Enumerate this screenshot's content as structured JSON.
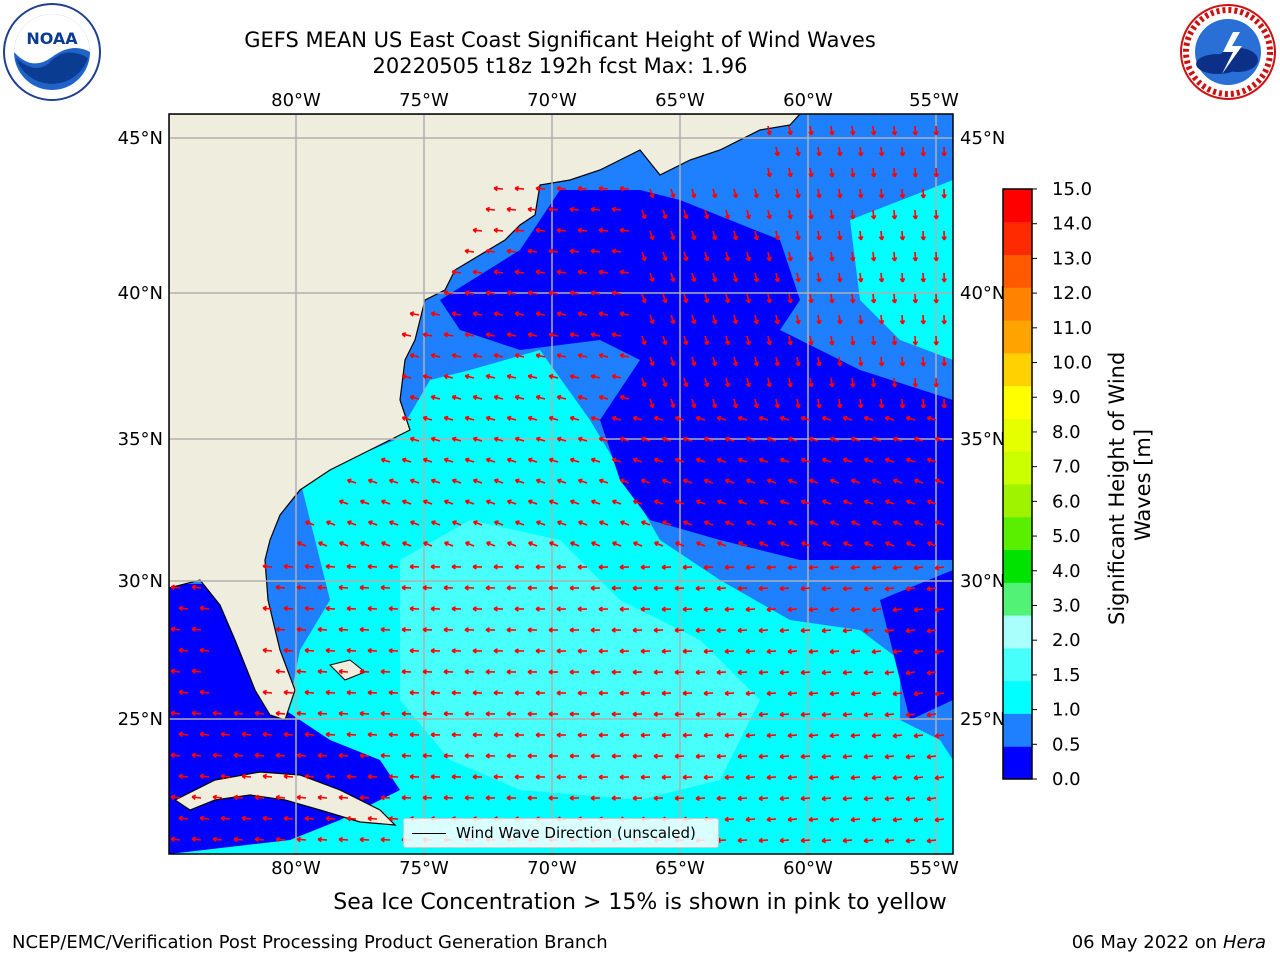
{
  "header": {
    "title_line1": "GEFS MEAN US East Coast Significant Height of Wind Waves",
    "title_line2": "20220505 t18z 192h fcst   Max: 1.96"
  },
  "logos": {
    "left": "NOAA",
    "left_ring_text": "NATIONAL OCEANIC AND ATMOSPHERIC ADMINISTRATION · U.S. DEPARTMENT OF COMMERCE",
    "right_ring_text": "NATIONAL WEATHER SERVICE"
  },
  "map": {
    "lon_labels": [
      "80°W",
      "75°W",
      "70°W",
      "65°W",
      "60°W",
      "55°W"
    ],
    "lat_labels": [
      "45°N",
      "40°N",
      "35°N",
      "30°N",
      "25°N"
    ],
    "legend_label": "Wind Wave Direction (unscaled)",
    "arrow_color": "#ff0000",
    "land_color": "#efedde"
  },
  "colorbar": {
    "label": "Significant Height of Wind Waves [m]",
    "ticks": [
      "0.0",
      "0.5",
      "1.0",
      "1.5",
      "2.0",
      "3.0",
      "4.0",
      "5.0",
      "6.0",
      "7.0",
      "8.0",
      "9.0",
      "10.0",
      "11.0",
      "12.0",
      "13.0",
      "14.0",
      "15.0"
    ],
    "colors": [
      "#0000ff",
      "#1e7fff",
      "#00ffff",
      "#47fffb",
      "#a9fffc",
      "#52f277",
      "#00e300",
      "#5aee00",
      "#9ff200",
      "#cbff00",
      "#e6ff00",
      "#ffff00",
      "#ffd100",
      "#ffa300",
      "#ff8200",
      "#ff5a00",
      "#ff2a00",
      "#ff0000"
    ]
  },
  "footer": {
    "sea_ice_note": "Sea Ice Concentration > 15% is shown in pink to yellow",
    "credit": "NCEP/EMC/Verification Post Processing Product Generation Branch",
    "date": "06 May 2022 on",
    "machine": "Hera"
  }
}
